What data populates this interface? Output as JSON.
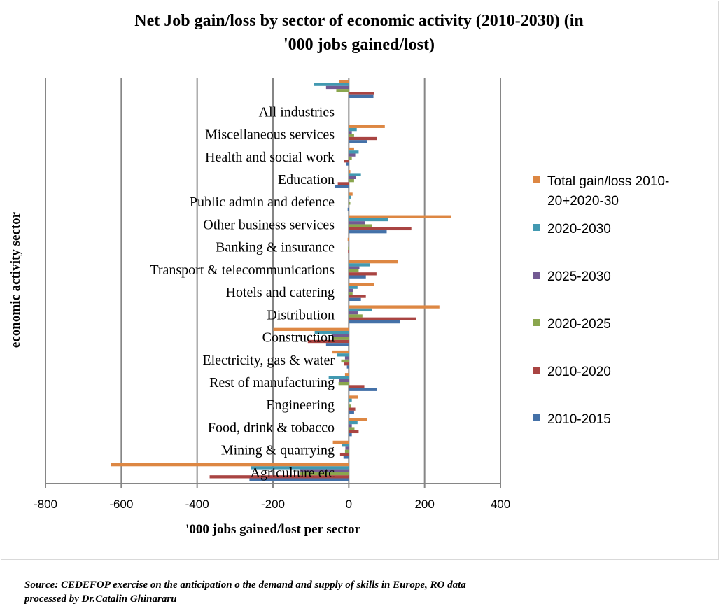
{
  "chart_data": {
    "type": "bar",
    "orientation": "horizontal",
    "title": "Net Job gain/loss by sector of economic activity (2010-2030) (in '000 jobs gained/lost)",
    "title_lines": [
      "Net Job gain/loss by sector of economic activity (2010-2030) (in",
      "'000 jobs gained/lost)"
    ],
    "xlabel": "'000 jobs gained/lost per sector",
    "ylabel": "economic activity sector",
    "xlim": [
      -800,
      400
    ],
    "xticks": [
      "-800",
      "-600",
      "-400",
      "-200",
      "0",
      "200",
      "400"
    ],
    "grid": true,
    "legend_position": "right",
    "categories": [
      "Agriculture etc",
      "Mining & quarrying",
      "Food, drink & tobacco",
      "Engineering",
      "Rest of manufacturing",
      "Electricity, gas & water",
      "Construction",
      "Distribution",
      "Hotels and catering",
      "Transport & telecommunications",
      "Banking & insurance",
      "Other business services",
      "Public admin and defence",
      "Education",
      "Health and social work",
      "Miscellaneous services",
      "All industries",
      ""
    ],
    "series": [
      {
        "name": "Total gain/loss 2010-20+2020-30",
        "legend_lines": [
          "Total gain/loss 2010-",
          "20+2020-30"
        ],
        "color": "#DD8743",
        "values": [
          -627,
          -42,
          49,
          25,
          -10,
          -44,
          -199,
          239,
          67,
          130,
          -3,
          270,
          10,
          4,
          14,
          95,
          null,
          -25
        ]
      },
      {
        "name": "2020-2030",
        "color": "#4299B1",
        "values": [
          -258,
          -18,
          23,
          8,
          -53,
          -31,
          -90,
          62,
          23,
          56,
          0,
          104,
          6,
          32,
          26,
          21,
          null,
          -92
        ]
      },
      {
        "name": "2025-2030",
        "color": "#735A93",
        "values": [
          -130,
          -9,
          8,
          0,
          -25,
          -10,
          -45,
          25,
          12,
          28,
          0,
          43,
          0,
          19,
          17,
          8,
          null,
          -60
        ]
      },
      {
        "name": "2020-2025",
        "color": "#8AA64E",
        "values": [
          -128,
          -10,
          15,
          6,
          -27,
          -20,
          -45,
          36,
          10,
          26,
          -2,
          62,
          4,
          14,
          8,
          14,
          null,
          -33
        ]
      },
      {
        "name": "2010-2020",
        "color": "#A94442",
        "values": [
          -367,
          -23,
          26,
          17,
          41,
          -12,
          -108,
          178,
          45,
          73,
          -2,
          165,
          0,
          -29,
          -12,
          74,
          null,
          67
        ]
      },
      {
        "name": "2010-2015",
        "color": "#4471A8",
        "values": [
          -262,
          -14,
          8,
          14,
          74,
          -5,
          -60,
          135,
          32,
          45,
          0,
          100,
          -3,
          -36,
          -7,
          49,
          null,
          65
        ]
      }
    ]
  },
  "source": [
    "Source: CEDEFOP exercise on the anticipation o the demand and supply of skills in Europe, RO data",
    "processed by Dr.Catalin Ghinararu"
  ]
}
